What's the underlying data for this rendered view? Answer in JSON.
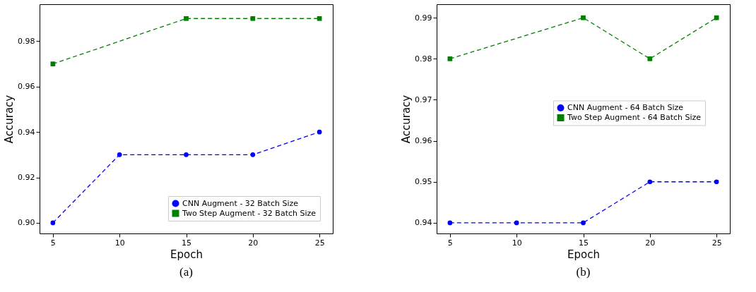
{
  "chart_data": [
    {
      "type": "line",
      "title": "(a)",
      "xlabel": "Epoch",
      "ylabel": "Accuracy",
      "x": [
        5,
        10,
        15,
        20,
        25
      ],
      "series": [
        {
          "name": "CNN Augment - 32 Batch Size",
          "color": "#0000ff",
          "marker": "circle",
          "values": [
            0.9,
            0.93,
            0.93,
            0.93,
            0.94
          ]
        },
        {
          "name": "Two Step Augment - 32 Batch Size",
          "color": "#008000",
          "marker": "square",
          "x": [
            5,
            15,
            20,
            25
          ],
          "values": [
            0.97,
            0.99,
            0.99,
            0.99
          ]
        }
      ],
      "xlim": [
        4,
        26
      ],
      "xticks": [
        5,
        10,
        15,
        20,
        25
      ],
      "ylim": [
        0.8953,
        0.9963
      ],
      "yticks": [
        {
          "value": 0.9,
          "label": "0.90"
        },
        {
          "value": 0.92,
          "label": "0.92"
        },
        {
          "value": 0.94,
          "label": "0.94"
        },
        {
          "value": 0.96,
          "label": "0.96"
        },
        {
          "value": 0.98,
          "label": "0.98"
        }
      ],
      "legend": "bottom right",
      "line_style": "dashed",
      "grid": false
    },
    {
      "type": "line",
      "title": "(b)",
      "xlabel": "Epoch",
      "ylabel": "Accuracy",
      "x": [
        5,
        10,
        15,
        20,
        25
      ],
      "series": [
        {
          "name": "CNN Augment - 64 Batch Size",
          "color": "#0000ff",
          "marker": "circle",
          "values": [
            0.94,
            0.94,
            0.94,
            0.95,
            0.95
          ]
        },
        {
          "name": "Two Step Augment - 64 Batch Size",
          "color": "#008000",
          "marker": "square",
          "x": [
            5,
            15,
            20,
            25
          ],
          "values": [
            0.98,
            0.99,
            0.98,
            0.99
          ]
        }
      ],
      "xlim": [
        4,
        26
      ],
      "xticks": [
        5,
        10,
        15,
        20,
        25
      ],
      "ylim": [
        0.9374,
        0.9933
      ],
      "yticks": [
        {
          "value": 0.94,
          "label": "0.94"
        },
        {
          "value": 0.95,
          "label": "0.95"
        },
        {
          "value": 0.96,
          "label": "0.96"
        },
        {
          "value": 0.97,
          "label": "0.97"
        },
        {
          "value": 0.98,
          "label": "0.98"
        },
        {
          "value": 0.99,
          "label": "0.99"
        }
      ],
      "legend": "right",
      "line_style": "dashed",
      "grid": false
    }
  ]
}
